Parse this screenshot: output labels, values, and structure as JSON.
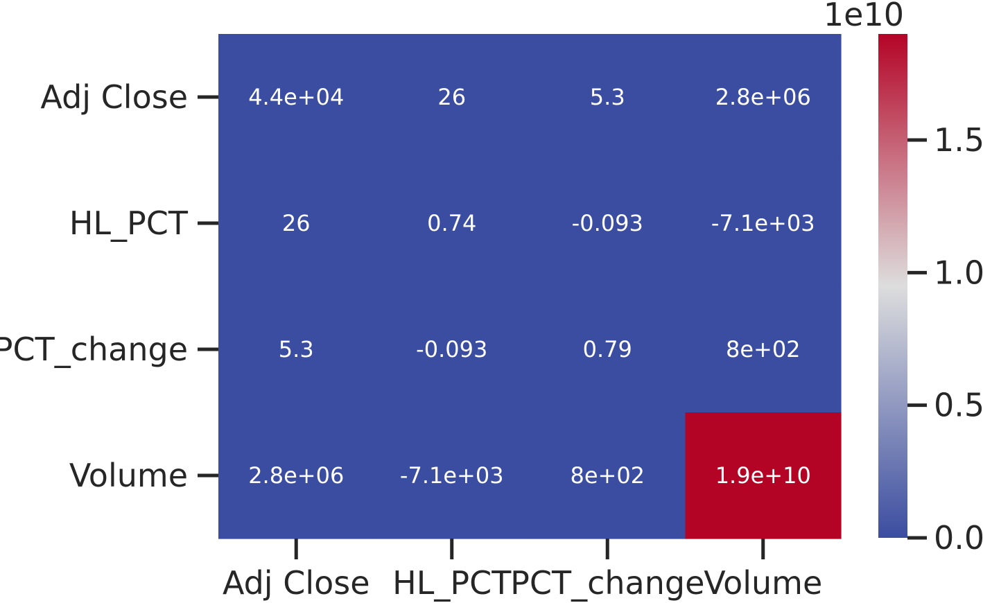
{
  "chart_data": {
    "type": "heatmap",
    "title": "",
    "xlabel": "",
    "ylabel": "",
    "rows": [
      "Adj Close",
      "HL_PCT",
      "PCT_change",
      "Volume"
    ],
    "columns": [
      "Adj Close",
      "HL_PCT",
      "PCT_change",
      "Volume"
    ],
    "values": [
      [
        44000,
        26,
        5.3,
        2800000
      ],
      [
        26,
        0.74,
        -0.093,
        -7100
      ],
      [
        5.3,
        -0.093,
        0.79,
        800
      ],
      [
        2800000,
        -7100,
        800,
        19000000000
      ]
    ],
    "annotations": [
      [
        "4.4e+04",
        "26",
        "5.3",
        "2.8e+06"
      ],
      [
        "26",
        "0.74",
        "-0.093",
        "-7.1e+03"
      ],
      [
        "5.3",
        "-0.093",
        "0.79",
        "8e+02"
      ],
      [
        "2.8e+06",
        "-7.1e+03",
        "8e+02",
        "1.9e+10"
      ]
    ],
    "colormap": "coolwarm",
    "colors": {
      "low": "#3b4da0",
      "mid": "#dddddd",
      "high": "#b40426"
    },
    "colorbar": {
      "range": [
        0,
        19000000000
      ],
      "ticks": [
        0,
        0.5,
        1.0,
        1.5
      ],
      "tick_labels": [
        "0.0",
        "0.5",
        "1.0",
        "1.5"
      ],
      "offset_label": "1e10"
    }
  }
}
